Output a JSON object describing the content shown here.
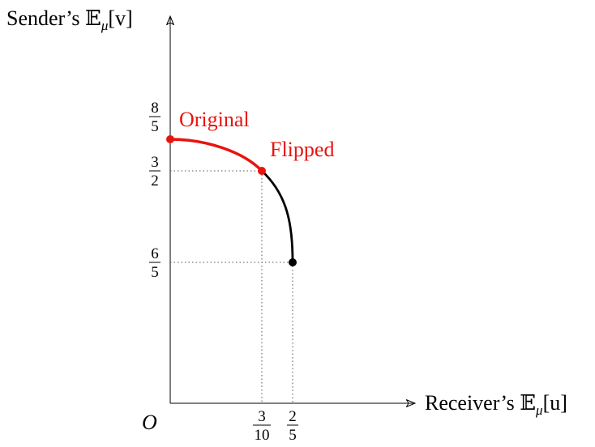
{
  "diagram": {
    "y_axis_label": {
      "prefix": "Sender’s ",
      "bb": "𝔼",
      "sub": "μ",
      "suffix": "[v]"
    },
    "x_axis_label": {
      "prefix": "Receiver’s ",
      "bb": "𝔼",
      "sub": "μ",
      "suffix": "[u]"
    },
    "origin_label": "O",
    "y_ticks": [
      {
        "num": "8",
        "den": "5"
      },
      {
        "num": "3",
        "den": "2"
      },
      {
        "num": "6",
        "den": "5"
      }
    ],
    "x_ticks": [
      {
        "num": "3",
        "den": "10"
      },
      {
        "num": "2",
        "den": "5"
      }
    ],
    "labels": {
      "original": "Original",
      "flipped": "Flipped"
    },
    "colors": {
      "highlight": "#e8140f",
      "curve": "#000000",
      "axis": "#000000",
      "guide": "#555555"
    }
  },
  "chart_data": {
    "type": "line",
    "xlabel": "Receiver’s 𝔼μ[u]",
    "ylabel": "Sender’s 𝔼μ[v]",
    "series": [
      {
        "name": "Original",
        "x": [
          0,
          0.1,
          0.2,
          0.3
        ],
        "y": [
          1.6,
          1.59,
          1.56,
          1.5
        ]
      },
      {
        "x": [
          0.3,
          0.35,
          0.38,
          0.4,
          0.4
        ],
        "y": [
          1.5,
          1.44,
          1.35,
          1.25,
          1.2
        ]
      }
    ],
    "points": [
      {
        "x": 0,
        "y": 1.6
      },
      {
        "x": 0.3,
        "y": 1.5
      },
      {
        "x": 0.4,
        "y": 1.2
      }
    ],
    "annotations": [
      "Original",
      "Flipped"
    ]
  }
}
